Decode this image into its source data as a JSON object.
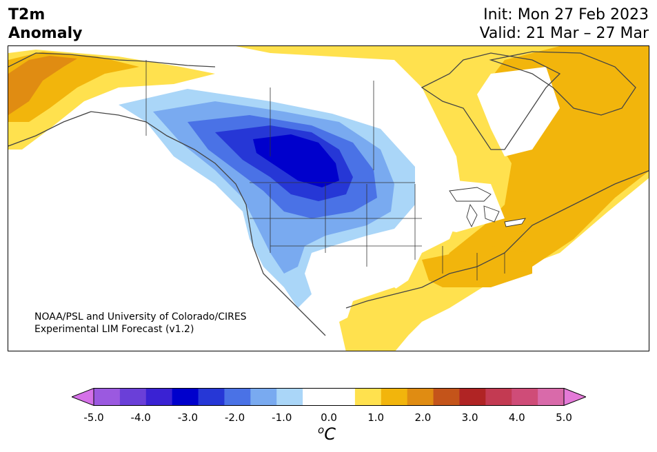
{
  "header": {
    "variable": "T2m",
    "subtitle": "Anomaly",
    "init": "Init: Mon 27 Feb 2023",
    "valid": "Valid: 21 Mar – 27 Mar"
  },
  "credit": {
    "line1": "NOAA/PSL and University of Colorado/CIRES",
    "line2": "Experimental LIM Forecast (v1.2)"
  },
  "colorbar": {
    "ticks": [
      "-5.0",
      "-4.0",
      "-3.0",
      "-2.0",
      "-1.0",
      "0.0",
      "1.0",
      "2.0",
      "3.0",
      "4.0",
      "5.0"
    ],
    "unit_symbol": "o",
    "unit_letter": "C",
    "colors": [
      "#d571e8",
      "#9b59e0",
      "#6a3fd8",
      "#3a22d3",
      "#0000cc",
      "#2637d6",
      "#4a72e6",
      "#79aaf0",
      "#aad6f8",
      "#ffffff",
      "#ffffff",
      "#ffe14e",
      "#f2b50c",
      "#e08c12",
      "#c4541a",
      "#b02424",
      "#c33a52",
      "#cf4c78",
      "#d96aaa",
      "#e47ad8"
    ]
  }
}
